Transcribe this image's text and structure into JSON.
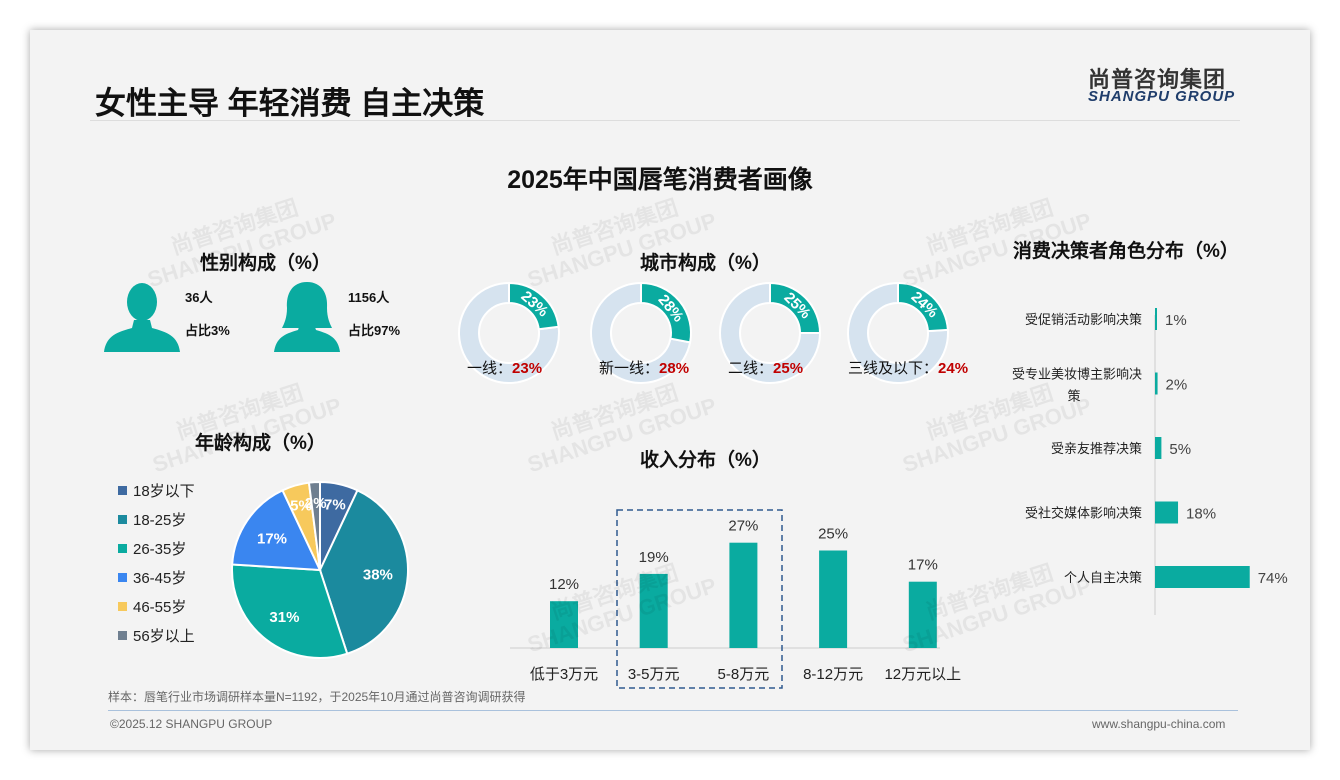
{
  "header": {
    "title": "女性主导 年轻消费 自主决策",
    "logo_cn": "尚普咨询集团",
    "logo_en": "SHANGPU GROUP"
  },
  "main_title": "2025年中国唇笔消费者画像",
  "gender": {
    "title": "性别构成（%）",
    "male": {
      "count": "36人",
      "share": "占比3%"
    },
    "female": {
      "count": "1156人",
      "share": "占比97%"
    }
  },
  "colors": {
    "teal": "#0aaba0",
    "light": "#d6e3ef",
    "red": "#c00000"
  },
  "chart_data": [
    {
      "type": "donut",
      "title": "城市构成（%）",
      "categories": [
        "一线：",
        "新一线：",
        "二线：",
        "三线及以下："
      ],
      "values": [
        23,
        28,
        25,
        24
      ],
      "value_labels": [
        "23%",
        "28%",
        "25%",
        "24%"
      ]
    },
    {
      "type": "pie",
      "title": "年龄构成（%）",
      "categories": [
        "18岁以下",
        "18-25岁",
        "26-35岁",
        "36-45岁",
        "46-55岁",
        "56岁以上"
      ],
      "values": [
        7,
        38,
        31,
        17,
        5,
        2
      ],
      "value_labels": [
        "7%",
        "38%",
        "31%",
        "17%",
        "5%",
        "2%"
      ],
      "colors": [
        "#3e6aa1",
        "#1b8a9e",
        "#0aaba0",
        "#3a86f0",
        "#f7c95c",
        "#6f7f90"
      ],
      "legend": "left"
    },
    {
      "type": "bar",
      "title": "收入分布（%）",
      "categories": [
        "低于3万元",
        "3-5万元",
        "5-8万元",
        "8-12万元",
        "12万元以上"
      ],
      "values": [
        12,
        19,
        27,
        25,
        17
      ],
      "value_labels": [
        "12%",
        "19%",
        "27%",
        "25%",
        "17%"
      ],
      "highlight": [
        "3-5万元",
        "5-8万元"
      ]
    },
    {
      "type": "bar",
      "orientation": "horizontal",
      "title": "消费决策者角色分布（%）",
      "categories": [
        "受促销活动影响决策",
        "受专业美妆博主影响决策",
        "受亲友推荐决策",
        "受社交媒体影响决策",
        "个人自主决策"
      ],
      "values": [
        1,
        2,
        5,
        18,
        74
      ],
      "value_labels": [
        "1%",
        "2%",
        "5%",
        "18%",
        "74%"
      ]
    }
  ],
  "footer": {
    "note": "样本：唇笔行业市场调研样本量N=1192，于2025年10月通过尚普咨询调研获得",
    "copyright": "©2025.12 SHANGPU GROUP",
    "url": "www.shangpu-china.com"
  }
}
